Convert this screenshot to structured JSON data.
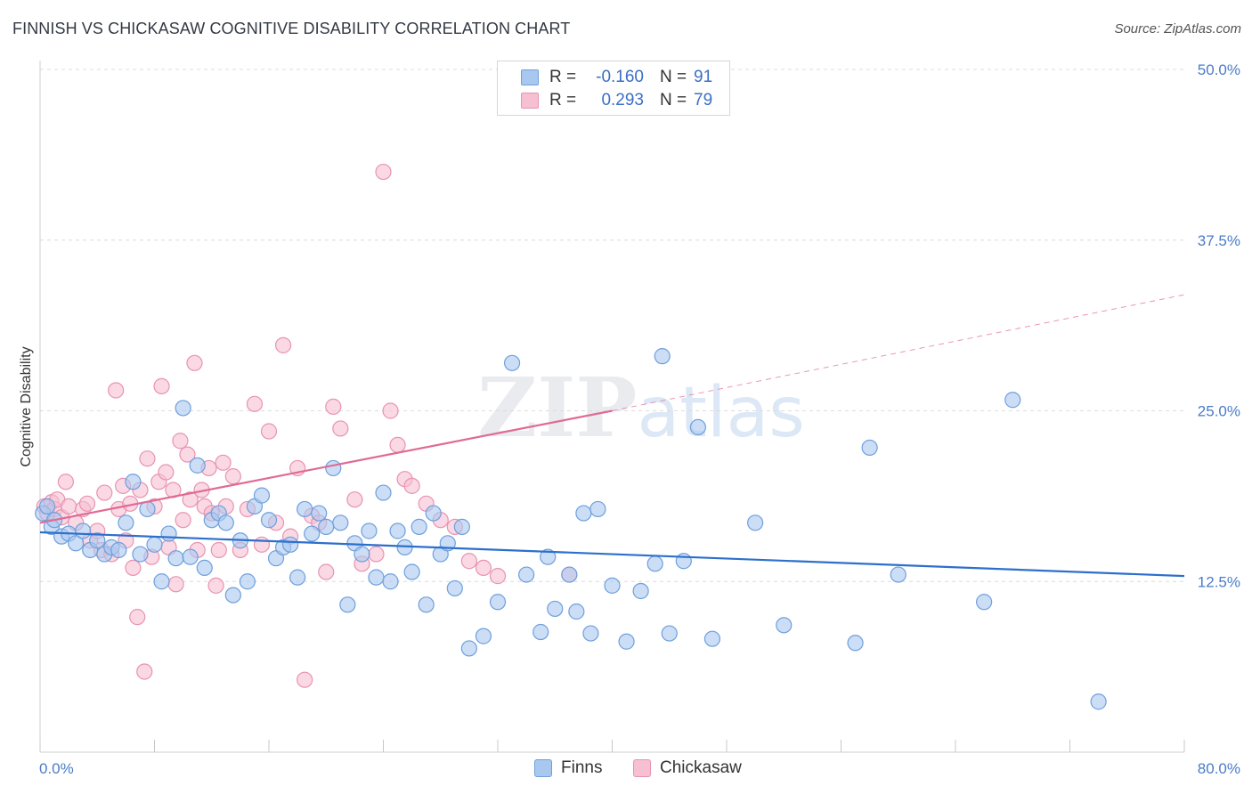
{
  "title": "FINNISH VS CHICKASAW COGNITIVE DISABILITY CORRELATION CHART",
  "source": "Source: ZipAtlas.com",
  "watermark": "ZIPatlas",
  "colors": {
    "finns_fill": "#a9c8f0",
    "finns_stroke": "#6f9fdc",
    "finns_line": "#2d6fcc",
    "chickasaw_fill": "#f6bfd2",
    "chickasaw_stroke": "#e893b1",
    "chickasaw_line": "#e06a95",
    "axis_text": "#4a7cc7",
    "grid": "#dcdcdc"
  },
  "legend_top": {
    "finns": {
      "r_label": "R =",
      "r_value": "-0.160",
      "n_label": "N =",
      "n_value": "91"
    },
    "chickasaw": {
      "r_label": "R =",
      "r_value": "0.293",
      "n_label": "N =",
      "n_value": "79"
    }
  },
  "legend_bottom": {
    "finns": "Finns",
    "chickasaw": "Chickasaw"
  },
  "chart_data": {
    "type": "scatter",
    "title": "FINNISH VS CHICKASAW COGNITIVE DISABILITY CORRELATION CHART",
    "xlabel": "",
    "ylabel": "Cognitive Disability",
    "xlim": [
      0,
      80
    ],
    "ylim": [
      0,
      50
    ],
    "x_tick_labels": [
      "0.0%",
      "80.0%"
    ],
    "y_ticks": [
      12.5,
      25.0,
      37.5,
      50.0
    ],
    "y_tick_labels": [
      "12.5%",
      "25.0%",
      "37.5%",
      "50.0%"
    ],
    "grid": true,
    "legend_placement": "top-center",
    "series": [
      {
        "name": "Finns",
        "r": -0.16,
        "n": 91,
        "trend": {
          "x": [
            0,
            80
          ],
          "y": [
            16.1,
            12.9
          ]
        },
        "x": [
          0.2,
          0.5,
          0.8,
          1.0,
          1.5,
          2.0,
          2.5,
          3.0,
          3.5,
          4.0,
          4.5,
          5.0,
          5.5,
          6.0,
          6.5,
          7.0,
          7.5,
          8.0,
          8.5,
          9.0,
          9.5,
          10.0,
          10.5,
          11.0,
          11.5,
          12.0,
          12.5,
          13.0,
          13.5,
          14.0,
          14.5,
          15.0,
          15.5,
          16.0,
          16.5,
          17.0,
          17.5,
          18.0,
          18.5,
          19.0,
          19.5,
          20.0,
          20.5,
          21.0,
          21.5,
          22.0,
          22.5,
          23.0,
          23.5,
          24.0,
          24.5,
          25.0,
          25.5,
          26.0,
          26.5,
          27.0,
          27.5,
          28.0,
          28.5,
          29.0,
          29.5,
          30.0,
          31.0,
          32.0,
          33.0,
          34.0,
          35.0,
          35.5,
          36.0,
          37.0,
          37.5,
          38.0,
          38.5,
          39.0,
          40.0,
          41.0,
          42.0,
          43.0,
          43.5,
          44.0,
          45.0,
          46.0,
          47.0,
          50.0,
          52.0,
          57.0,
          58.0,
          60.0,
          66.0,
          68.0,
          74.0
        ],
        "y": [
          17.5,
          18.0,
          16.5,
          17.0,
          15.8,
          16.0,
          15.3,
          16.2,
          14.8,
          15.5,
          14.5,
          15.0,
          14.8,
          16.8,
          19.8,
          14.5,
          17.8,
          15.2,
          12.5,
          16.0,
          14.2,
          25.2,
          14.3,
          21.0,
          13.5,
          17.0,
          17.5,
          16.8,
          11.5,
          15.5,
          12.5,
          18.0,
          18.8,
          17.0,
          14.2,
          15.0,
          15.2,
          12.8,
          17.8,
          16.0,
          17.5,
          16.5,
          20.8,
          16.8,
          10.8,
          15.3,
          14.5,
          16.2,
          12.8,
          19.0,
          12.5,
          16.2,
          15.0,
          13.2,
          16.5,
          10.8,
          17.5,
          14.5,
          15.3,
          12.0,
          16.5,
          7.6,
          8.5,
          11.0,
          28.5,
          13.0,
          8.8,
          14.3,
          10.5,
          13.0,
          10.3,
          17.5,
          8.7,
          17.8,
          12.2,
          8.1,
          11.8,
          13.8,
          29.0,
          8.7,
          14.0,
          23.8,
          8.3,
          16.8,
          9.3,
          8.0,
          22.3,
          13.0,
          11.0,
          25.8,
          3.7
        ]
      },
      {
        "name": "Chickasaw",
        "r": 0.293,
        "n": 79,
        "trend": {
          "x": [
            0,
            40
          ],
          "y": [
            16.8,
            25.0
          ]
        },
        "trend_extension": {
          "x": [
            40,
            80
          ],
          "y": [
            25.0,
            33.5
          ]
        },
        "x": [
          0.3,
          0.5,
          0.8,
          1.0,
          1.2,
          1.5,
          1.8,
          2.0,
          2.5,
          3.0,
          3.3,
          3.5,
          4.0,
          4.3,
          4.5,
          5.0,
          5.3,
          5.5,
          5.8,
          6.0,
          6.3,
          6.5,
          6.8,
          7.0,
          7.3,
          7.5,
          7.8,
          8.0,
          8.3,
          8.5,
          8.8,
          9.0,
          9.3,
          9.5,
          9.8,
          10.0,
          10.3,
          10.5,
          10.8,
          11.0,
          11.3,
          11.5,
          11.8,
          12.0,
          12.3,
          12.5,
          12.8,
          13.0,
          13.5,
          14.0,
          14.5,
          15.0,
          15.5,
          16.0,
          16.5,
          17.0,
          17.5,
          18.0,
          18.5,
          19.0,
          19.5,
          20.0,
          20.5,
          21.0,
          22.0,
          22.5,
          23.5,
          24.0,
          24.5,
          25.0,
          25.5,
          26.0,
          27.0,
          28.0,
          29.0,
          30.0,
          31.0,
          32.0,
          37.0
        ],
        "y": [
          18.0,
          17.5,
          18.3,
          17.8,
          18.5,
          17.2,
          19.8,
          18.0,
          16.8,
          17.8,
          18.2,
          15.5,
          16.2,
          14.8,
          19.0,
          14.5,
          26.5,
          17.8,
          19.5,
          15.5,
          18.2,
          13.5,
          9.9,
          19.2,
          5.9,
          21.5,
          14.3,
          18.0,
          19.8,
          26.8,
          20.5,
          15.0,
          19.2,
          12.3,
          22.8,
          17.0,
          21.8,
          18.5,
          28.5,
          14.8,
          19.2,
          18.0,
          20.8,
          17.5,
          12.2,
          14.8,
          21.2,
          18.0,
          20.2,
          14.8,
          17.8,
          25.5,
          15.2,
          23.5,
          16.8,
          29.8,
          15.8,
          20.8,
          5.3,
          17.3,
          16.8,
          13.2,
          25.3,
          23.7,
          18.5,
          13.8,
          14.5,
          42.5,
          25.0,
          22.5,
          20.0,
          19.5,
          18.2,
          17.0,
          16.5,
          14.0,
          13.5,
          12.9,
          13.0
        ]
      }
    ]
  }
}
